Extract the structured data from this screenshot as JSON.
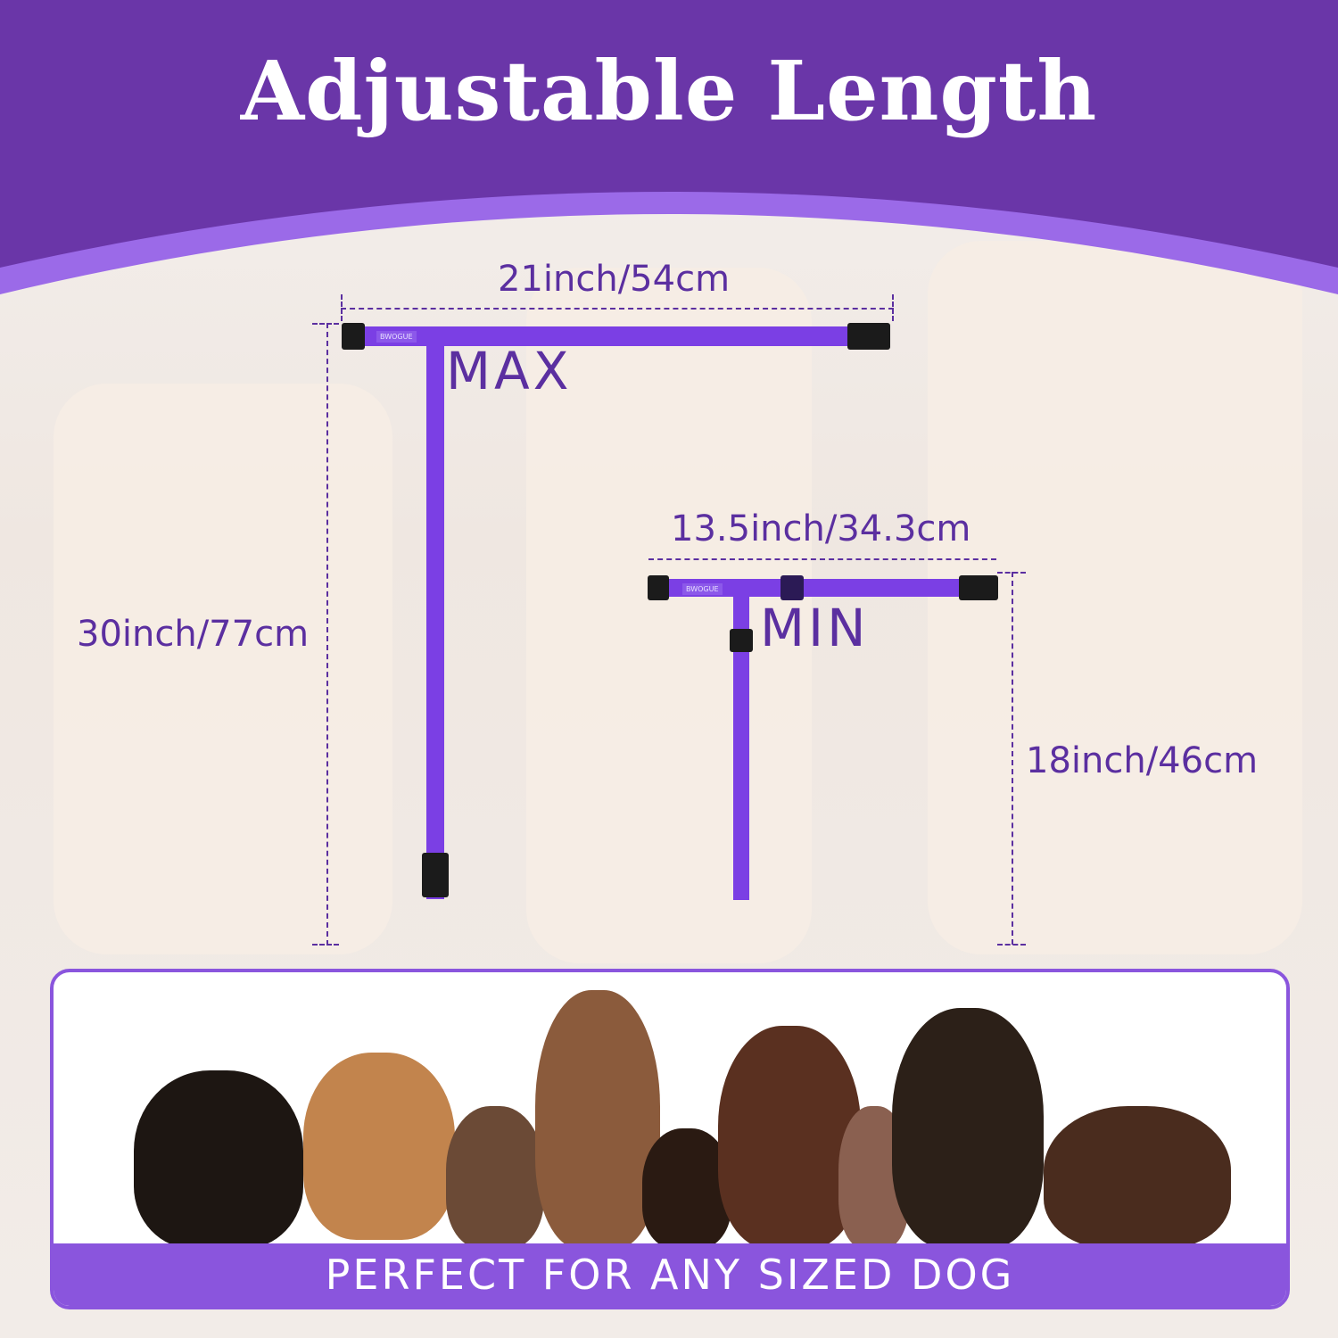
{
  "title": "Adjustable Length",
  "colors": {
    "header": "#6a36a8",
    "accent_band": "#9b6ae8",
    "text": "#5b2fa0",
    "strap": "#7b3fe4"
  },
  "max": {
    "label": "MAX",
    "width": "21inch/54cm",
    "height": "30inch/77cm",
    "brand": "BWOGUE"
  },
  "min": {
    "label": "MIN",
    "width": "13.5inch/34.3cm",
    "height": "18inch/46cm",
    "brand": "BWOGUE"
  },
  "banner": "PERFECT FOR ANY SIZED DOG"
}
